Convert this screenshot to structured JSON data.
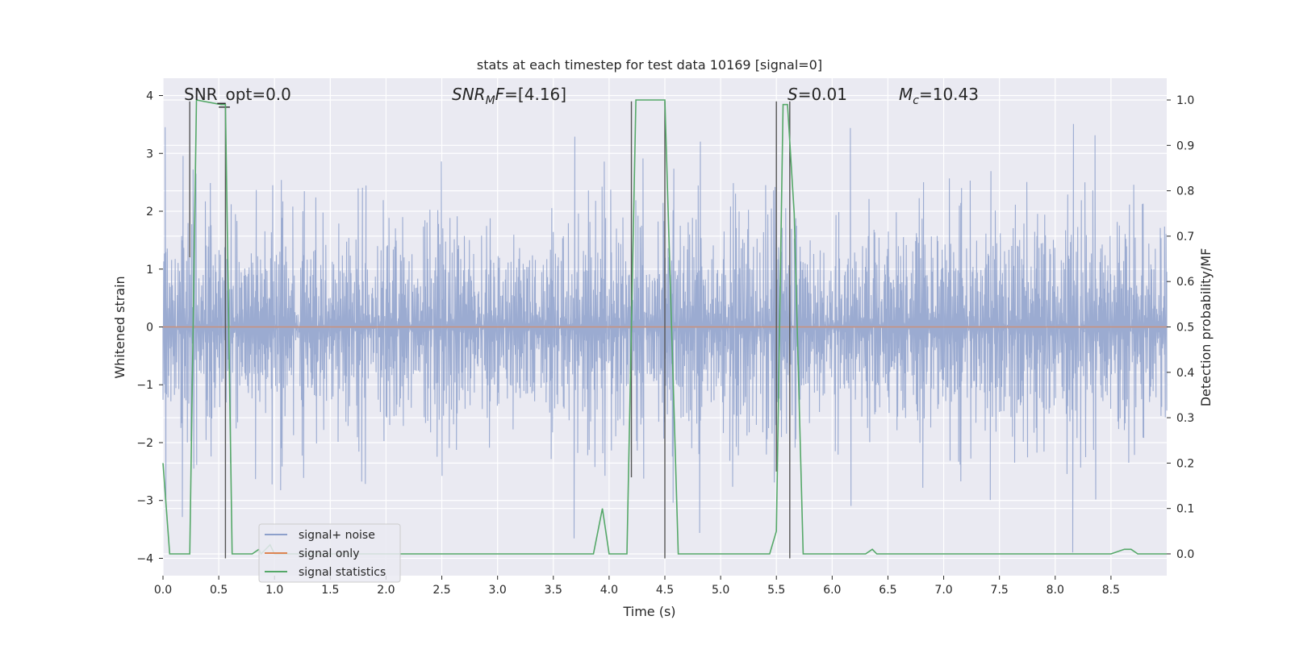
{
  "chart_data": {
    "type": "line",
    "title": "stats at each timestep for test data 10169 [signal=0]",
    "xlabel": "Time (s)",
    "ylabel_left": "Whitened strain",
    "ylabel_right": "Detection probability/MF",
    "xlim": [
      0.0,
      9.0
    ],
    "ylim_left": [
      -4.3,
      4.3
    ],
    "ylim_right": [
      -0.048,
      1.048
    ],
    "grid": true,
    "legend_position": "lower left",
    "x_ticks": [
      "0.0",
      "0.5",
      "1.0",
      "1.5",
      "2.0",
      "2.5",
      "3.0",
      "3.5",
      "4.0",
      "4.5",
      "5.0",
      "5.5",
      "6.0",
      "6.5",
      "7.0",
      "7.5",
      "8.0",
      "8.5"
    ],
    "y_left_ticks": [
      "4",
      "3",
      "2",
      "1",
      "0",
      "−1",
      "−2",
      "−3",
      "−4"
    ],
    "y_right_ticks": [
      "1.0",
      "0.9",
      "0.8",
      "0.7",
      "0.6",
      "0.5",
      "0.4",
      "0.3",
      "0.2",
      "0.1",
      "0.0"
    ],
    "annotations": {
      "snr_opt": "SNR_opt=0.0",
      "snr_mf_main": "SNR",
      "snr_mf_sub": "M",
      "snr_mf_tail": "F",
      "snr_mf_value": "=[4.16]",
      "s_label": "S",
      "s_value": "=0.01",
      "mc_label": "M",
      "mc_sub": "c",
      "mc_value": "=10.43"
    },
    "series": [
      {
        "name": "signal+ noise",
        "color": "#8da0cb",
        "amplitude_std": 1.05,
        "peak_clip": [
          -3.9,
          3.9
        ],
        "note_only_visual": false
      },
      {
        "name": "signal only",
        "color": "#dd8452",
        "constant_value": 0.0
      },
      {
        "name": "signal statistics",
        "color": "#55a868",
        "axis": "right",
        "x": [
          0.0,
          0.06,
          0.2,
          0.24,
          0.3,
          0.52,
          0.56,
          0.62,
          0.8,
          0.86,
          0.88,
          0.96,
          1.0,
          3.5,
          3.6,
          3.86,
          3.94,
          4.0,
          4.12,
          4.16,
          4.24,
          4.5,
          4.62,
          5.0,
          5.44,
          5.5,
          5.56,
          5.6,
          5.66,
          5.74,
          5.8,
          6.3,
          6.36,
          6.4,
          8.5,
          8.62,
          8.68,
          8.74,
          9.0
        ],
        "values": [
          0.2,
          0.0,
          0.0,
          0.0,
          1.0,
          0.99,
          0.99,
          0.0,
          0.0,
          0.01,
          0.0,
          0.02,
          0.0,
          0.0,
          0.0,
          0.0,
          0.1,
          0.0,
          0.0,
          0.0,
          1.0,
          1.0,
          0.0,
          0.0,
          0.0,
          0.05,
          0.99,
          0.99,
          0.75,
          0.0,
          0.0,
          0.0,
          0.01,
          0.0,
          0.0,
          0.01,
          0.01,
          0.0,
          0.0
        ]
      }
    ],
    "vertical_markers": {
      "color": "#555555",
      "x": [
        0.24,
        0.56,
        4.2,
        4.5,
        5.5,
        5.62
      ],
      "y_top": [
        3.9,
        3.8,
        3.9,
        3.9,
        3.9,
        3.9
      ],
      "y_bottom": [
        1.2,
        -4.0,
        -2.6,
        -4.0,
        -2.5,
        -4.0
      ]
    },
    "bracket": {
      "x": [
        0.5,
        0.6
      ],
      "y": 3.8
    }
  }
}
